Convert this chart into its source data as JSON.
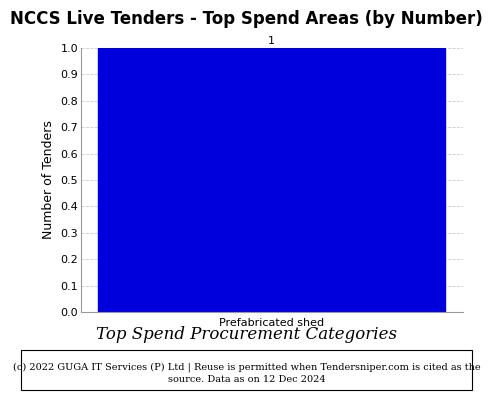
{
  "title": "NCCS Live Tenders - Top Spend Areas (by Number)",
  "categories": [
    "Prefabricated shed"
  ],
  "values": [
    1
  ],
  "bar_color": "#0000dd",
  "xlabel_tick": "Prefabricated shed",
  "xlabel_main": "Top Spend Procurement Categories",
  "ylabel": "Number of Tenders",
  "ylim": [
    0,
    1.0
  ],
  "yticks": [
    0.0,
    0.1,
    0.2,
    0.3,
    0.4,
    0.5,
    0.6,
    0.7,
    0.8,
    0.9,
    1.0
  ],
  "title_fontsize": 12,
  "xlabel_main_fontsize": 12,
  "xlabel_tick_fontsize": 8,
  "ylabel_fontsize": 9,
  "tick_fontsize": 8,
  "bar_label_fontsize": 8,
  "footer_text1": "(c) 2022 GUGA IT Services (P) Ltd | Reuse is permitted when Tendersniper.com is cited as the",
  "footer_text2": "source. Data as on 12 Dec 2024",
  "footer_fontsize": 7,
  "grid_color": "#cccccc",
  "background_color": "#ffffff"
}
